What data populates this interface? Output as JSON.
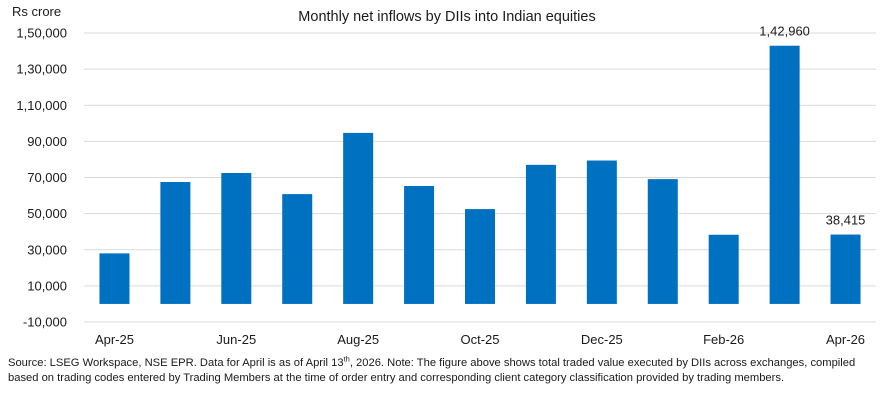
{
  "chart_data": {
    "type": "bar",
    "title": "Monthly net inflows by DIIs into Indian equities",
    "ylabel": "Rs crore",
    "xlabel": "",
    "categories": [
      "Apr-25",
      "May-25",
      "Jun-25",
      "Jul-25",
      "Aug-25",
      "Sep-25",
      "Oct-25",
      "Nov-25",
      "Dec-25",
      "Jan-26",
      "Feb-26",
      "Mar-26",
      "Apr-26"
    ],
    "x_tick_labels": [
      "Apr-25",
      "",
      "Jun-25",
      "",
      "Aug-25",
      "",
      "Oct-25",
      "",
      "Dec-25",
      "",
      "Feb-26",
      "",
      "Apr-26"
    ],
    "values": [
      28000,
      67500,
      72500,
      60800,
      94700,
      65300,
      52500,
      77000,
      79400,
      69100,
      38300,
      142960,
      38415
    ],
    "data_labels": [
      {
        "index": 11,
        "text": "1,42,960"
      },
      {
        "index": 12,
        "text": "38,415"
      }
    ],
    "ylim": [
      -10000,
      150000
    ],
    "y_ticks": [
      -10000,
      10000,
      30000,
      50000,
      70000,
      90000,
      110000,
      130000,
      150000
    ],
    "y_tick_labels": [
      "-10,000",
      "10,000",
      "30,000",
      "50,000",
      "70,000",
      "90,000",
      "1,10,000",
      "1,30,000",
      "1,50,000"
    ],
    "grid": true,
    "bar_color": "#0070c0",
    "gridline_color": "#d9d9d9"
  },
  "footer": {
    "note_before_sup": "Source: LSEG Workspace, NSE EPR. Data for April is as of April 13",
    "note_sup": "th",
    "note_after_sup": ", 2026. Note: The figure above shows total traded value executed by DIIs across exchanges, compiled based on trading codes entered by Trading Members at the time of order entry and corresponding client category classification provided by trading members."
  }
}
